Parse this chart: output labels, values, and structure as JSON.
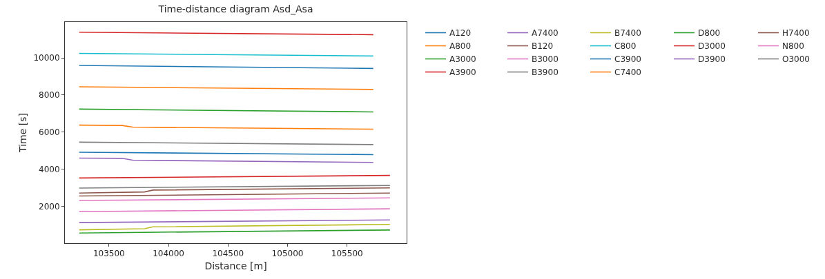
{
  "chart_data": {
    "type": "line",
    "title": "Time-distance diagram Asd_Asa",
    "xlabel": "Distance [m]",
    "ylabel": "Time [s]",
    "xlim": [
      103130,
      106000
    ],
    "ylim": [
      20,
      11930
    ],
    "xticks": [
      103500,
      104000,
      104500,
      105000,
      105500
    ],
    "yticks": [
      2000,
      4000,
      6000,
      8000,
      10000
    ],
    "grid": false,
    "legend": "top right",
    "line_style": "solid",
    "marker": "none",
    "series": [
      {
        "name": "A120",
        "color": "#1f77b4",
        "x": [
          103250,
          105720
        ],
        "values": [
          9590,
          9430
        ]
      },
      {
        "name": "A800",
        "color": "#ff7f0e",
        "x": [
          103250,
          105720
        ],
        "values": [
          8440,
          8300
        ]
      },
      {
        "name": "A3000",
        "color": "#2ca02c",
        "x": [
          103250,
          105720
        ],
        "values": [
          7240,
          7090
        ]
      },
      {
        "name": "A3900",
        "color": "#d62728",
        "x": [
          103250,
          105720
        ],
        "values": [
          11380,
          11250
        ]
      },
      {
        "name": "A7400",
        "color": "#9467bd",
        "x": [
          103250,
          103610,
          103700,
          105720
        ],
        "values": [
          4600,
          4590,
          4490,
          4370
        ]
      },
      {
        "name": "B120",
        "color": "#8c564b",
        "x": [
          103250,
          105860
        ],
        "values": [
          2560,
          2720
        ]
      },
      {
        "name": "B3000",
        "color": "#e377c2",
        "x": [
          103250,
          105860
        ],
        "values": [
          2320,
          2460
        ]
      },
      {
        "name": "B3900",
        "color": "#7f7f7f",
        "x": [
          103250,
          105720
        ],
        "values": [
          5460,
          5330
        ]
      },
      {
        "name": "B7400",
        "color": "#bcbd22",
        "x": [
          103250,
          103800,
          103870,
          105860
        ],
        "values": [
          740,
          800,
          900,
          1030
        ]
      },
      {
        "name": "C800",
        "color": "#17becf",
        "x": [
          103250,
          105720
        ],
        "values": [
          10240,
          10100
        ]
      },
      {
        "name": "C3900",
        "color": "#1f77b4",
        "x": [
          103250,
          105720
        ],
        "values": [
          4920,
          4790
        ]
      },
      {
        "name": "C7400",
        "color": "#ff7f0e",
        "x": [
          103250,
          103610,
          103700,
          105720
        ],
        "values": [
          6380,
          6360,
          6270,
          6160
        ]
      },
      {
        "name": "D800",
        "color": "#2ca02c",
        "x": [
          103250,
          105860
        ],
        "values": [
          570,
          730
        ]
      },
      {
        "name": "D3000",
        "color": "#d62728",
        "x": [
          103250,
          105860
        ],
        "values": [
          3530,
          3670
        ]
      },
      {
        "name": "D3900",
        "color": "#9467bd",
        "x": [
          103250,
          105860
        ],
        "values": [
          1130,
          1270
        ]
      },
      {
        "name": "H7400",
        "color": "#8c564b",
        "x": [
          103250,
          103800,
          103870,
          105860
        ],
        "values": [
          2720,
          2780,
          2880,
          3000
        ]
      },
      {
        "name": "N800",
        "color": "#e377c2",
        "x": [
          103250,
          105860
        ],
        "values": [
          1720,
          1870
        ]
      },
      {
        "name": "O3000",
        "color": "#7f7f7f",
        "x": [
          103250,
          105860
        ],
        "values": [
          2990,
          3130
        ]
      }
    ]
  }
}
